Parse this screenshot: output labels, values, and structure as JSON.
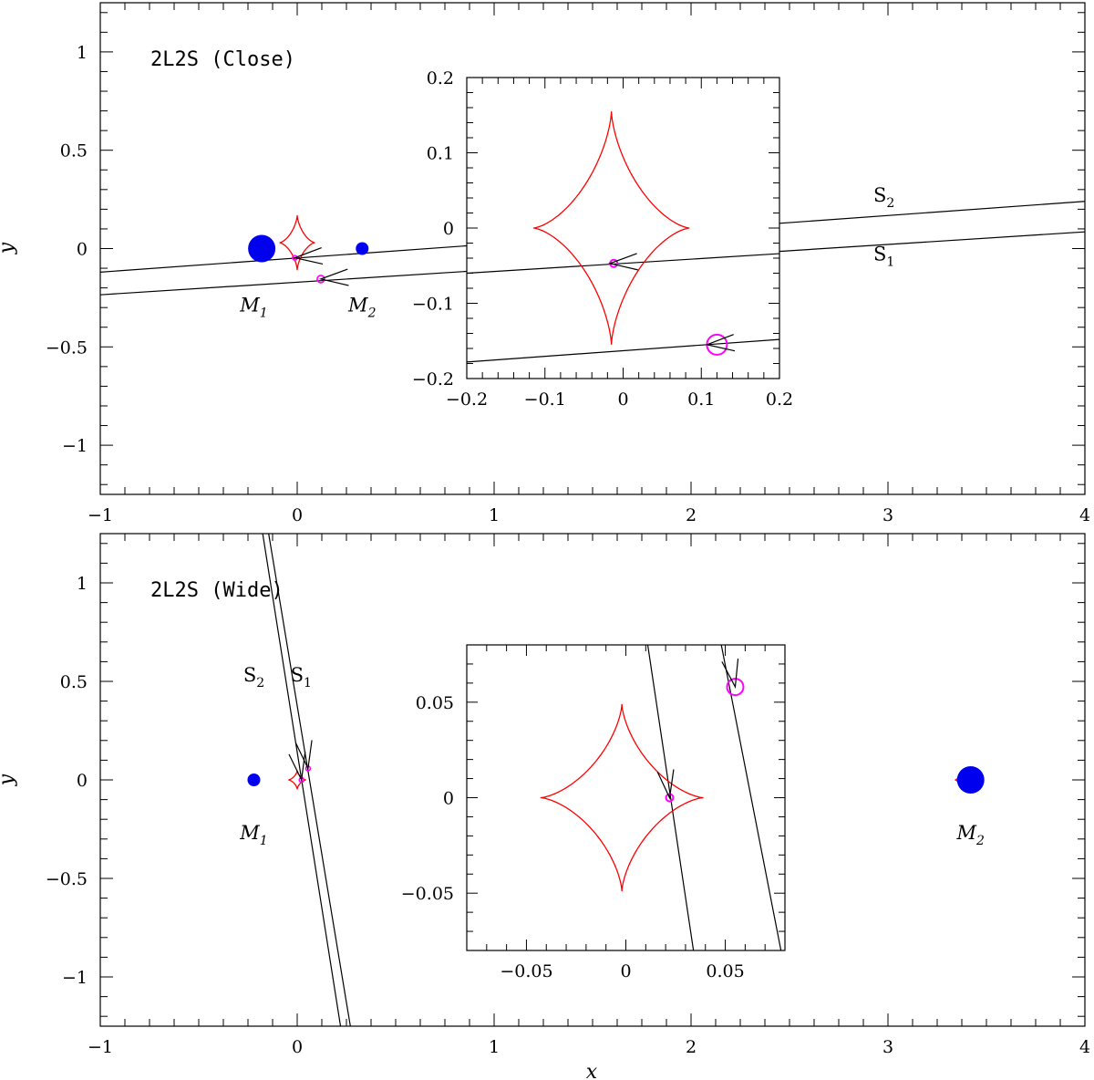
{
  "chart_data": [
    {
      "type": "scatter",
      "title": "2L2S (Close)",
      "xlabel": "x",
      "ylabel": "y",
      "xlim": [
        -1,
        4
      ],
      "ylim": [
        -1.25,
        1.25
      ],
      "xticks": [
        "−1",
        "0",
        "1",
        "2",
        "3",
        "4"
      ],
      "yticks": [
        "−1",
        "−0.5",
        "0",
        "0.5",
        "1"
      ],
      "lenses": [
        {
          "name": "M",
          "sub": "1",
          "x": -0.18,
          "y": 0.0,
          "r": 15,
          "label_xy": [
            -0.22,
            -0.32
          ]
        },
        {
          "name": "M",
          "sub": "2",
          "x": 0.33,
          "y": 0.0,
          "r": 7,
          "label_xy": [
            0.33,
            -0.32
          ]
        }
      ],
      "caustics": [
        {
          "cx": 0.0,
          "cy": 0.03,
          "rx": 0.09,
          "ry": 0.14
        }
      ],
      "sources": [
        {
          "name": "S",
          "sub": "1",
          "x": 0.12,
          "y": -0.155,
          "r": 4,
          "label_xy": [
            2.98,
            -0.06
          ]
        },
        {
          "name": "S",
          "sub": "2",
          "x": -0.012,
          "y": -0.047,
          "r": 2.5,
          "label_xy": [
            2.98,
            0.24
          ]
        }
      ],
      "trajectories": [
        {
          "from": [
            -1,
            -0.235
          ],
          "to": [
            4,
            0.085
          ]
        },
        {
          "from": [
            -1,
            -0.12
          ],
          "to": [
            4,
            0.24
          ]
        }
      ],
      "inset": {
        "xlim": [
          -0.2,
          0.2
        ],
        "ylim": [
          -0.2,
          0.2
        ],
        "xticks": [
          "−0.2",
          "−0.1",
          "0",
          "0.1",
          "0.2"
        ],
        "yticks": [
          "−0.2",
          "−0.1",
          "0",
          "0.1",
          "0.2"
        ],
        "caustics": [
          {
            "cx": -0.015,
            "cy": 0.0,
            "rx": 0.1,
            "ry": 0.155
          }
        ],
        "sources": [
          {
            "x": -0.012,
            "y": -0.047,
            "r": 4
          },
          {
            "x": 0.12,
            "y": -0.155,
            "r": 11
          }
        ],
        "trajectories": [
          {
            "from": [
              -0.2,
              -0.06
            ],
            "to": [
              0.2,
              -0.034
            ]
          },
          {
            "from": [
              -0.2,
              -0.178
            ],
            "to": [
              0.2,
              -0.148
            ]
          }
        ]
      }
    },
    {
      "type": "scatter",
      "title": "2L2S (Wide)",
      "xlabel": "x",
      "ylabel": "y",
      "xlim": [
        -1,
        4
      ],
      "ylim": [
        -1.25,
        1.25
      ],
      "xticks": [
        "−1",
        "0",
        "1",
        "2",
        "3",
        "4"
      ],
      "yticks": [
        "−1",
        "−0.5",
        "0",
        "0.5",
        "1"
      ],
      "lenses": [
        {
          "name": "M",
          "sub": "1",
          "x": -0.22,
          "y": 0.0,
          "r": 7,
          "label_xy": [
            -0.22,
            -0.3
          ]
        },
        {
          "name": "M",
          "sub": "2",
          "x": 3.42,
          "y": 0.0,
          "r": 15,
          "label_xy": [
            3.42,
            -0.3
          ]
        }
      ],
      "caustics": [
        {
          "cx": 0.0,
          "cy": 0.0,
          "rx": 0.045,
          "ry": 0.048
        },
        {
          "cx": 3.36,
          "cy": 0.0,
          "rx": 0.02,
          "ry": 0.02
        }
      ],
      "sources": [
        {
          "name": "S",
          "sub": "1",
          "x": 0.055,
          "y": 0.058,
          "r": 2.5,
          "label_xy": [
            0.02,
            0.5
          ]
        },
        {
          "name": "S",
          "sub": "2",
          "x": 0.022,
          "y": 0.0,
          "r": 2.5,
          "label_xy": [
            -0.22,
            0.5
          ]
        }
      ],
      "trajectories": [
        {
          "from": [
            -0.18,
            1.28
          ],
          "to": [
            0.22,
            -1.25
          ]
        },
        {
          "from": [
            -0.15,
            1.28
          ],
          "to": [
            0.27,
            -1.25
          ]
        }
      ],
      "inset": {
        "xlim": [
          -0.08,
          0.08
        ],
        "ylim": [
          -0.08,
          0.08
        ],
        "xticks": [
          "−0.05",
          "0",
          "0.05"
        ],
        "yticks": [
          "−0.05",
          "0",
          "0.05"
        ],
        "caustics": [
          {
            "cx": -0.002,
            "cy": 0.0,
            "rx": 0.041,
            "ry": 0.049
          }
        ],
        "sources": [
          {
            "x": 0.022,
            "y": 0.0,
            "r": 4
          },
          {
            "x": 0.055,
            "y": 0.058,
            "r": 9
          }
        ],
        "trajectories": [
          {
            "from": [
              0.011,
              0.08
            ],
            "to": [
              0.034,
              -0.08
            ]
          },
          {
            "from": [
              0.048,
              0.08
            ],
            "to": [
              0.078,
              -0.08
            ]
          }
        ]
      }
    }
  ],
  "colors": {
    "lens": "#0000ee",
    "caustic": "#ff0000",
    "source": "#ff00ff",
    "trajectory": "#000000"
  }
}
